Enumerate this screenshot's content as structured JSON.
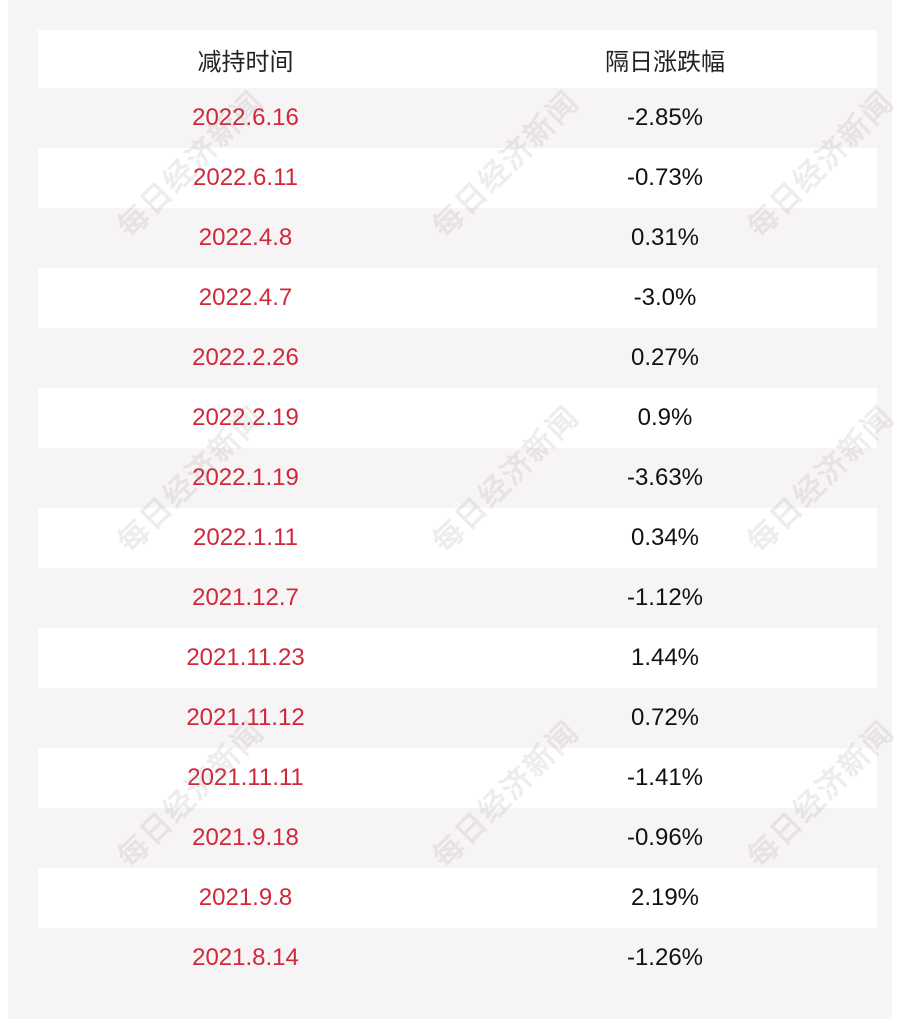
{
  "watermark": "每日经济新闻",
  "table": {
    "header": [
      "减持时间",
      "隔日涨跌幅"
    ],
    "rows": [
      [
        "2022.6.16",
        "-2.85%"
      ],
      [
        "2022.6.11",
        "-0.73%"
      ],
      [
        "2022.4.8",
        "0.31%"
      ],
      [
        "2022.4.7",
        "-3.0%"
      ],
      [
        "2022.2.26",
        "0.27%"
      ],
      [
        "2022.2.19",
        "0.9%"
      ],
      [
        "2022.1.19",
        "-3.63%"
      ],
      [
        "2022.1.11",
        "0.34%"
      ],
      [
        "2021.12.7",
        "-1.12%"
      ],
      [
        "2021.11.23",
        "1.44%"
      ],
      [
        "2021.11.12",
        "0.72%"
      ],
      [
        "2021.11.11",
        "-1.41%"
      ],
      [
        "2021.9.18",
        "-0.96%"
      ],
      [
        "2021.9.8",
        "2.19%"
      ],
      [
        "2021.8.14",
        "-1.26%"
      ]
    ]
  }
}
